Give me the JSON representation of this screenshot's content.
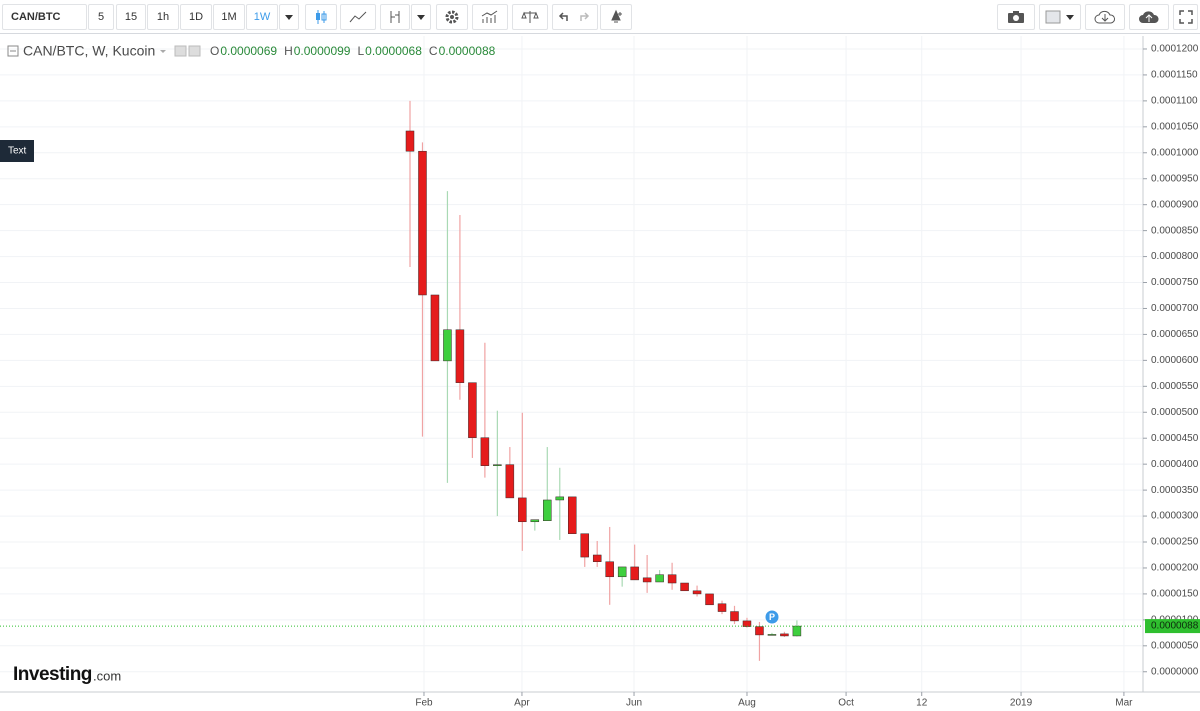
{
  "toolbar": {
    "symbol": "CAN/BTC",
    "intervals": [
      "5",
      "15",
      "1h",
      "1D",
      "1M",
      "1W"
    ]
  },
  "chart_data": {
    "type": "candlestick",
    "legend": {
      "title": "CAN/BTC, W, Kucoin",
      "ohlc": [
        {
          "key": "O",
          "text": "0.0000069"
        },
        {
          "key": "H",
          "text": "0.0000099"
        },
        {
          "key": "L",
          "text": "0.0000068"
        },
        {
          "key": "C",
          "text": "0.0000088"
        }
      ]
    },
    "x": [
      0,
      1,
      2,
      3,
      4,
      5,
      6,
      7,
      8,
      9,
      10,
      11,
      12,
      13,
      14,
      15,
      16,
      17,
      18,
      19,
      20,
      21,
      22,
      23,
      24,
      25,
      26,
      27,
      28,
      29,
      30,
      31
    ],
    "open": [
      0.0001042,
      0.0001003,
      7.26e-05,
      5.99e-05,
      6.59e-05,
      5.57e-05,
      4.51e-05,
      3.97e-05,
      3.99e-05,
      3.35e-05,
      2.89e-05,
      2.91e-05,
      3.31e-05,
      3.37e-05,
      2.66e-05,
      2.25e-05,
      2.12e-05,
      1.83e-05,
      2.02e-05,
      1.81e-05,
      1.73e-05,
      1.87e-05,
      1.71e-05,
      1.56e-05,
      1.5e-05,
      1.31e-05,
      1.16e-05,
      9.8e-06,
      8.7e-06,
      7.1e-06,
      7.3e-06,
      6.9e-06
    ],
    "high": [
      0.00011,
      0.000102,
      7.26e-05,
      9.26e-05,
      8.8e-05,
      5.57e-05,
      6.34e-05,
      5.03e-05,
      4.33e-05,
      4.99e-05,
      2.93e-05,
      4.33e-05,
      3.93e-05,
      3.37e-05,
      2.66e-05,
      2.52e-05,
      2.79e-05,
      2.02e-05,
      2.45e-05,
      2.25e-05,
      1.96e-05,
      2.1e-05,
      1.71e-05,
      1.66e-05,
      1.5e-05,
      1.37e-05,
      1.27e-05,
      1.04e-05,
      9.6e-06,
      7.5e-06,
      7.7e-06,
      9.9e-06
    ],
    "low": [
      7.8e-05,
      4.53e-05,
      5.99e-05,
      3.64e-05,
      5.24e-05,
      4.12e-05,
      3.74e-05,
      3e-05,
      3.35e-05,
      2.33e-05,
      2.72e-05,
      2.91e-05,
      2.54e-05,
      2.66e-05,
      2.02e-05,
      2.02e-05,
      1.29e-05,
      1.64e-05,
      1.77e-05,
      1.52e-05,
      1.73e-05,
      1.58e-05,
      1.56e-05,
      1.45e-05,
      1.29e-05,
      1.11e-05,
      9.2e-06,
      8.5e-06,
      2.1e-06,
      7e-06,
      6.7e-06,
      6.8e-06
    ],
    "close": [
      0.0001003,
      7.26e-05,
      5.99e-05,
      6.59e-05,
      5.57e-05,
      4.51e-05,
      3.97e-05,
      3.99e-05,
      3.35e-05,
      2.89e-05,
      2.93e-05,
      3.31e-05,
      3.37e-05,
      2.66e-05,
      2.21e-05,
      2.12e-05,
      1.83e-05,
      2.02e-05,
      1.77e-05,
      1.73e-05,
      1.87e-05,
      1.71e-05,
      1.56e-05,
      1.5e-05,
      1.29e-05,
      1.16e-05,
      9.8e-06,
      8.7e-06,
      7.1e-06,
      7.2e-06,
      6.9e-06,
      8.8e-06
    ],
    "up_color": "#3ecf3e",
    "down_color": "#e51c1c",
    "up_wick_color": "#a9d9b4",
    "down_wick_color": "#f0a3a3",
    "xlim": [
      -32.85,
      58.73
    ],
    "xticks": [
      {
        "value": 1.12,
        "label": "Feb"
      },
      {
        "value": 8.97,
        "label": "Apr"
      },
      {
        "value": 17.95,
        "label": "Jun"
      },
      {
        "value": 27.0,
        "label": "Aug"
      },
      {
        "value": 34.94,
        "label": "Oct"
      },
      {
        "value": 41.0,
        "label": "12"
      },
      {
        "value": 48.96,
        "label": "2019"
      },
      {
        "value": 57.2,
        "label": "Mar"
      }
    ],
    "ylim": [
      -3.9e-06,
      0.0001225
    ],
    "yticks": [
      {
        "value": 0,
        "label": "0.0000000"
      },
      {
        "value": 5e-06,
        "label": "0.0000050"
      },
      {
        "value": 1e-05,
        "label": "0.0000100"
      },
      {
        "value": 1.5e-05,
        "label": "0.0000150"
      },
      {
        "value": 2e-05,
        "label": "0.0000200"
      },
      {
        "value": 2.5e-05,
        "label": "0.0000250"
      },
      {
        "value": 3e-05,
        "label": "0.0000300"
      },
      {
        "value": 3.5e-05,
        "label": "0.0000350"
      },
      {
        "value": 4e-05,
        "label": "0.0000400"
      },
      {
        "value": 4.5e-05,
        "label": "0.0000450"
      },
      {
        "value": 5e-05,
        "label": "0.0000500"
      },
      {
        "value": 5.5e-05,
        "label": "0.0000550"
      },
      {
        "value": 6e-05,
        "label": "0.0000600"
      },
      {
        "value": 6.5e-05,
        "label": "0.0000650"
      },
      {
        "value": 7e-05,
        "label": "0.0000700"
      },
      {
        "value": 7.5e-05,
        "label": "0.0000750"
      },
      {
        "value": 8e-05,
        "label": "0.0000800"
      },
      {
        "value": 8.5e-05,
        "label": "0.0000850"
      },
      {
        "value": 9e-05,
        "label": "0.0000900"
      },
      {
        "value": 9.5e-05,
        "label": "0.0000950"
      },
      {
        "value": 0.0001,
        "label": "0.0001000"
      },
      {
        "value": 0.000105,
        "label": "0.0001050"
      },
      {
        "value": 0.00011,
        "label": "0.0001100"
      },
      {
        "value": 0.000115,
        "label": "0.0001150"
      },
      {
        "value": 0.00012,
        "label": "0.0001200"
      }
    ],
    "grid": true,
    "last_price": {
      "value": 8.8e-06,
      "label": "0.0000088"
    },
    "last_price_color": "#2fbf2f",
    "annotations": {
      "text_tag": "Text",
      "marker": "P"
    },
    "watermark": {
      "brand": "Investing",
      "suffix": ".com"
    }
  }
}
